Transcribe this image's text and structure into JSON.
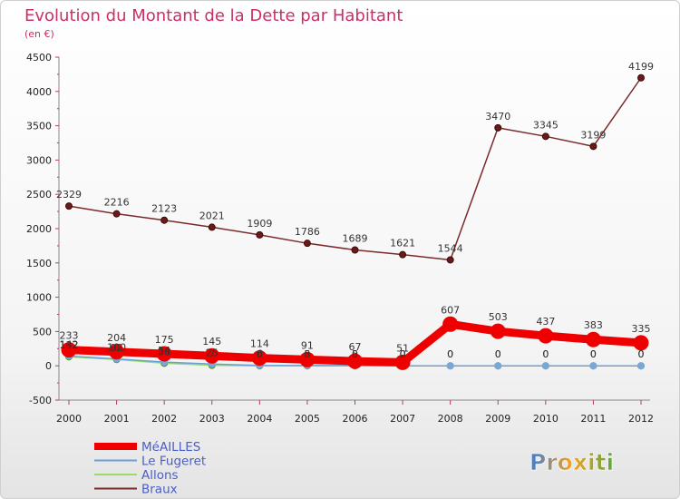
{
  "logo": {
    "text": "Proxiti"
  },
  "chart_data": {
    "type": "line",
    "title": "Evolution du Montant de la Dette par Habitant",
    "subtitle": "(en €)",
    "categories": [
      "2000",
      "2001",
      "2002",
      "2003",
      "2004",
      "2005",
      "2006",
      "2007",
      "2008",
      "2009",
      "2010",
      "2011",
      "2012"
    ],
    "ylim": [
      -500,
      4500
    ],
    "yticks": [
      -500,
      0,
      500,
      1000,
      1500,
      2000,
      2500,
      3000,
      3500,
      4000,
      4500
    ],
    "grid": false,
    "legend_position": "bottom-left",
    "series": [
      {
        "name": "MéAILLES",
        "color": "#ee0000",
        "values": [
          233,
          204,
          175,
          145,
          114,
          91,
          67,
          51,
          607,
          503,
          437,
          383,
          335
        ],
        "labels": [
          "233",
          "204",
          "175",
          "145",
          "114",
          "91",
          "67",
          "51",
          "607",
          "503",
          "437",
          "383",
          "335"
        ]
      },
      {
        "name": "Le Fugeret",
        "color": "#6a9fd6",
        "values": [
          142,
          100,
          54,
          25,
          6,
          5,
          5,
          0,
          0,
          0,
          0,
          0,
          0
        ],
        "labels": [
          "142",
          "100",
          "54",
          "25",
          "6",
          "5",
          "5",
          "0",
          "0",
          "0",
          "0",
          "0",
          "0"
        ]
      },
      {
        "name": "Allons",
        "color": "#99dd66",
        "values": [
          132,
          92,
          38,
          7,
          0,
          0,
          0,
          0,
          0,
          0,
          0,
          0,
          0
        ],
        "labels": [
          "132",
          "92",
          "38",
          "7",
          "0",
          "0",
          "0",
          "0",
          "0",
          "0",
          "0",
          "0",
          "0"
        ]
      },
      {
        "name": "Braux",
        "color": "#7a2a2a",
        "values": [
          2329,
          2216,
          2123,
          2021,
          1909,
          1786,
          1689,
          1621,
          1544,
          3470,
          3345,
          3199,
          4199
        ],
        "labels": [
          "2329",
          "2216",
          "2123",
          "2021",
          "1909",
          "1786",
          "1689",
          "1621",
          "1544",
          "3470",
          "3345",
          "3199",
          "4199"
        ]
      }
    ]
  }
}
